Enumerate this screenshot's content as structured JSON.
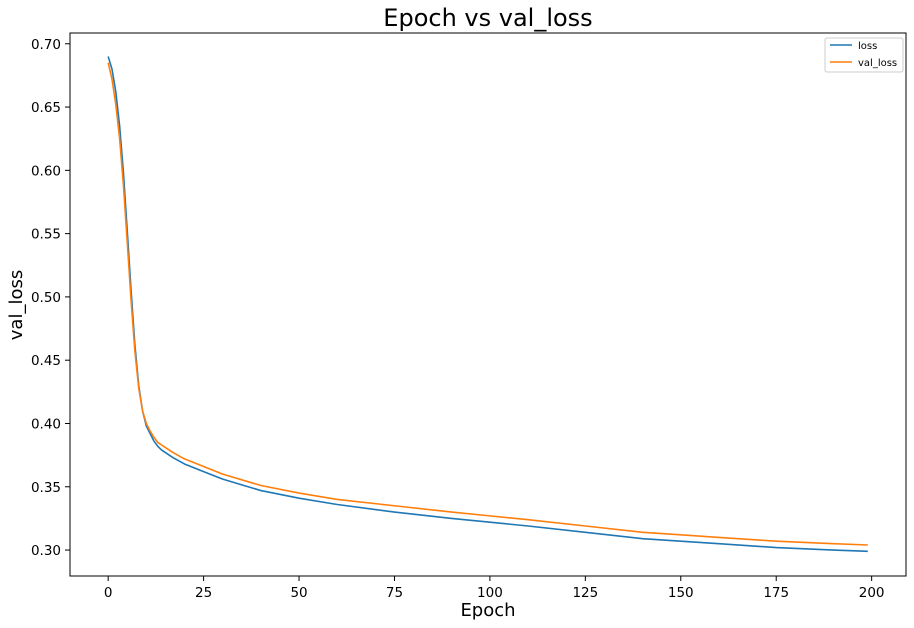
{
  "chart_data": {
    "type": "line",
    "title": "Epoch vs val_loss",
    "xlabel": "Epoch",
    "ylabel": "val_loss",
    "xlim": [
      -10,
      209
    ],
    "ylim": [
      0.2795,
      0.7085
    ],
    "xticks": [
      0,
      25,
      50,
      75,
      100,
      125,
      150,
      175,
      200
    ],
    "xtick_labels": [
      "0",
      "25",
      "50",
      "75",
      "100",
      "125",
      "150",
      "175",
      "200"
    ],
    "yticks": [
      0.3,
      0.35,
      0.4,
      0.45,
      0.5,
      0.55,
      0.6,
      0.65,
      0.7
    ],
    "ytick_labels": [
      "0.30",
      "0.35",
      "0.40",
      "0.45",
      "0.50",
      "0.55",
      "0.60",
      "0.65",
      "0.70"
    ],
    "grid": false,
    "legend_position": "top-right",
    "series": [
      {
        "name": "loss",
        "color": "#1f77b4",
        "points": [
          [
            0,
            0.69
          ],
          [
            1,
            0.68
          ],
          [
            2,
            0.662
          ],
          [
            3,
            0.635
          ],
          [
            4,
            0.598
          ],
          [
            5,
            0.552
          ],
          [
            6,
            0.505
          ],
          [
            7,
            0.462
          ],
          [
            8,
            0.43
          ],
          [
            9,
            0.41
          ],
          [
            10,
            0.398
          ],
          [
            11,
            0.392
          ],
          [
            12,
            0.386
          ],
          [
            13,
            0.382
          ],
          [
            14,
            0.379
          ],
          [
            15,
            0.377
          ],
          [
            17,
            0.373
          ],
          [
            20,
            0.368
          ],
          [
            25,
            0.362
          ],
          [
            30,
            0.356
          ],
          [
            40,
            0.347
          ],
          [
            50,
            0.341
          ],
          [
            60,
            0.336
          ],
          [
            75,
            0.33
          ],
          [
            90,
            0.325
          ],
          [
            100,
            0.322
          ],
          [
            110,
            0.319
          ],
          [
            125,
            0.314
          ],
          [
            140,
            0.309
          ],
          [
            150,
            0.307
          ],
          [
            160,
            0.305
          ],
          [
            175,
            0.302
          ],
          [
            190,
            0.3
          ],
          [
            199,
            0.299
          ]
        ]
      },
      {
        "name": "val_loss",
        "color": "#ff7f0e",
        "points": [
          [
            0,
            0.685
          ],
          [
            1,
            0.672
          ],
          [
            2,
            0.652
          ],
          [
            3,
            0.625
          ],
          [
            4,
            0.588
          ],
          [
            5,
            0.543
          ],
          [
            6,
            0.497
          ],
          [
            7,
            0.457
          ],
          [
            8,
            0.428
          ],
          [
            9,
            0.41
          ],
          [
            10,
            0.4
          ],
          [
            11,
            0.394
          ],
          [
            12,
            0.389
          ],
          [
            13,
            0.385
          ],
          [
            14,
            0.383
          ],
          [
            15,
            0.381
          ],
          [
            17,
            0.377
          ],
          [
            20,
            0.372
          ],
          [
            25,
            0.366
          ],
          [
            30,
            0.36
          ],
          [
            40,
            0.351
          ],
          [
            50,
            0.345
          ],
          [
            60,
            0.34
          ],
          [
            75,
            0.335
          ],
          [
            90,
            0.33
          ],
          [
            100,
            0.327
          ],
          [
            110,
            0.324
          ],
          [
            125,
            0.319
          ],
          [
            140,
            0.314
          ],
          [
            150,
            0.312
          ],
          [
            160,
            0.31
          ],
          [
            175,
            0.307
          ],
          [
            190,
            0.305
          ],
          [
            199,
            0.304
          ]
        ]
      }
    ]
  }
}
